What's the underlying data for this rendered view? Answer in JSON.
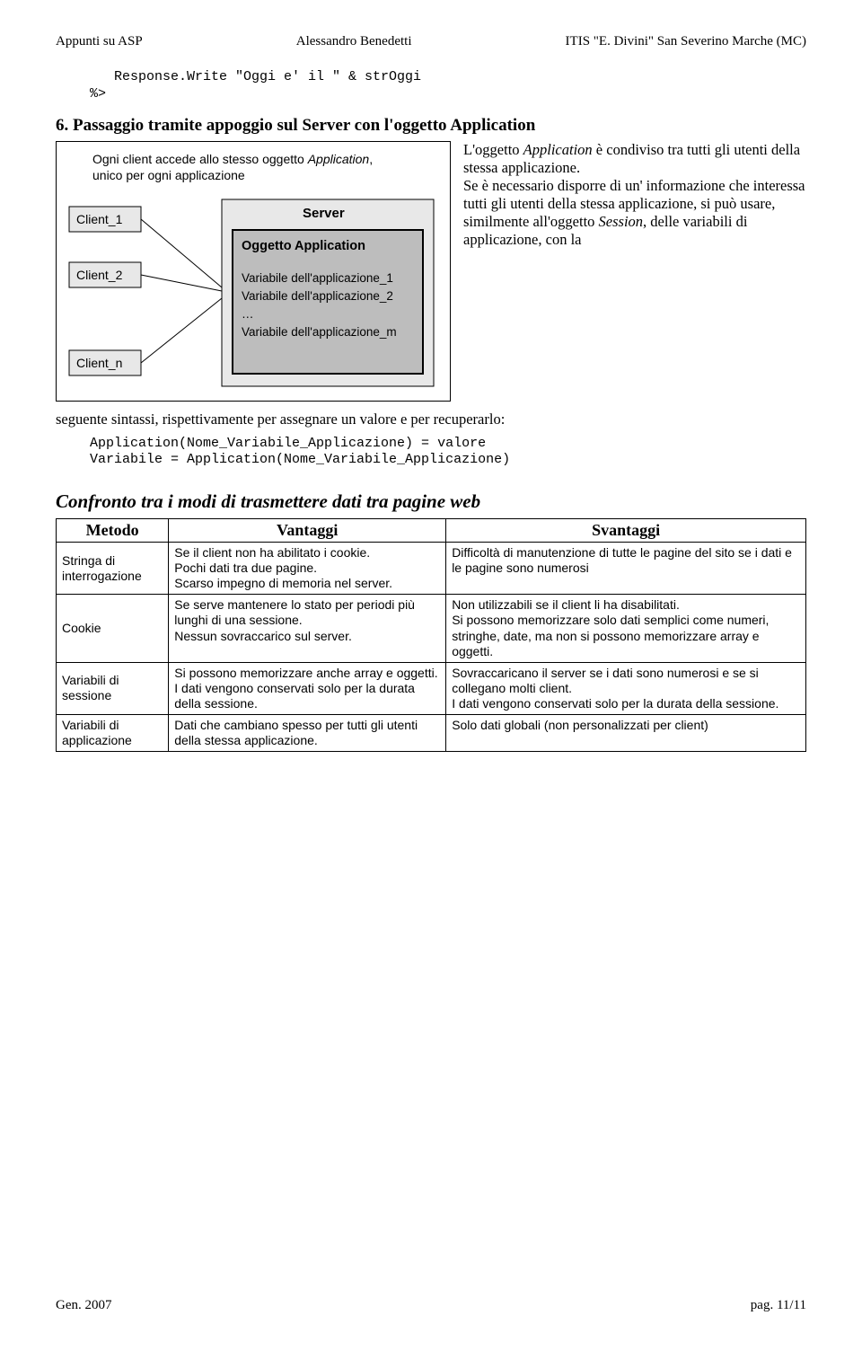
{
  "header": {
    "left": "Appunti su ASP",
    "center": "Alessandro Benedetti",
    "right": "ITIS \"E. Divini\" San Severino Marche (MC)"
  },
  "code1": {
    "line1": "   Response.Write \"Oggi e' il \" & strOggi",
    "line2": "%>"
  },
  "headline6": "6. Passaggio tramite appoggio sul Server con l'oggetto Application",
  "diagram": {
    "caption1": "Ogni client accede allo stesso oggetto ",
    "caption1_it": "Application",
    "caption1b": ", ",
    "caption2": "unico per ogni applicazione",
    "client1": "Client_1",
    "client2": "Client_2",
    "clientn": "Client_n",
    "server": "Server",
    "obj_title": "Oggetto Application",
    "var1": "Variabile dell'applicazione_1",
    "var2": "Variabile dell'applicazione_2",
    "dots": "…",
    "varm": "Variabile dell'applicazione_m"
  },
  "para": {
    "p1a": "L'oggetto ",
    "p1b": "Application",
    "p1c": " è condiviso tra tutti gli utenti della stessa applicazione.",
    "p2a": "Se è necessario disporre di un' informazione che interessa tutti gli utenti della stessa applicazione, si può usare, similmente all'oggetto ",
    "p2b": "Session",
    "p2c": ", delle variabili di applicazione, con la",
    "below": "seguente sintassi, rispettivamente per assegnare un valore e per recuperarlo:"
  },
  "code2": {
    "line1": "Application(Nome_Variabile_Applicazione) = valore",
    "line2": "Variabile = Application(Nome_Variabile_Applicazione)"
  },
  "section_title": "Confronto tra i modi di trasmettere dati tra pagine web",
  "table": {
    "h0": "Metodo",
    "h1": "Vantaggi",
    "h2": "Svantaggi",
    "rows": [
      {
        "m": "Stringa di interrogazione",
        "v": "Se il client non ha abilitato i cookie.\nPochi dati tra due pagine.\nScarso impegno di memoria nel server.",
        "s": "Difficoltà di manutenzione di tutte le pagine del sito se i dati e le pagine sono numerosi"
      },
      {
        "m": "Cookie",
        "v": "Se serve mantenere lo stato per periodi più lunghi di una sessione.\nNessun sovraccarico sul server.",
        "s": "Non utilizzabili se il client li ha disabilitati.\nSi possono memorizzare solo dati semplici come numeri, stringhe, date, ma non si possono memorizzare array e oggetti."
      },
      {
        "m": "Variabili di sessione",
        "v": "Si possono memorizzare anche array e oggetti.\nI dati vengono conservati solo per la durata della sessione.",
        "s": "Sovraccaricano il server se i dati sono numerosi e se si collegano molti client.\nI dati vengono conservati solo per la durata della sessione."
      },
      {
        "m": "Variabili di applicazione",
        "v": "Dati che cambiano spesso per tutti gli utenti della stessa applicazione.",
        "s": "Solo dati globali (non personalizzati per client)"
      }
    ]
  },
  "footer": {
    "date": "Gen. 2007",
    "page": "pag. 11/11"
  }
}
